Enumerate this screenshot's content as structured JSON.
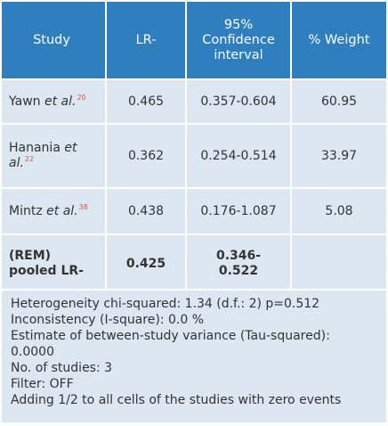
{
  "table": {
    "headers": {
      "study": "Study",
      "lr": "LR-",
      "ci_line1": "95%",
      "ci_line2": "Confidence",
      "ci_line3": "interval",
      "weight": "% Weight"
    },
    "rows": [
      {
        "author": "Yawn",
        "etal": "et al.",
        "ref": "20",
        "lr": "0.465",
        "ci": "0.357-0.604",
        "weight": "60.95"
      },
      {
        "author_line1": "Hanania",
        "etal_line1": "et",
        "etal_line2": "al.",
        "ref": "22",
        "lr": "0.362",
        "ci": "0.254-0.514",
        "weight": "33.97"
      },
      {
        "author": "Mintz",
        "etal": "et al.",
        "ref": "38",
        "lr": "0.438",
        "ci": "0.176-1.087",
        "weight": "5.08"
      }
    ],
    "pooled": {
      "label_line1": "(REM)",
      "label_line2": "pooled LR-",
      "lr": "0.425",
      "ci_line1": "0.346-",
      "ci_line2": "0.522",
      "weight": ""
    }
  },
  "notes": {
    "heterogeneity": "Heterogeneity chi-squared: 1.34 (d.f.: 2) p=0.512",
    "inconsistency": "Inconsistency (I-square): 0.0 %",
    "tau_label": "Estimate of between-study variance (Tau-squared):",
    "tau_value": "0.0000",
    "n_studies": "No. of studies: 3",
    "filter": "Filter: OFF",
    "adding": "Adding 1/2 to all cells of the studies with zero events"
  },
  "colors": {
    "header_bg": "#2f7fbf",
    "row_bg": "#dde7f2",
    "ref_color": "#d9534f"
  }
}
